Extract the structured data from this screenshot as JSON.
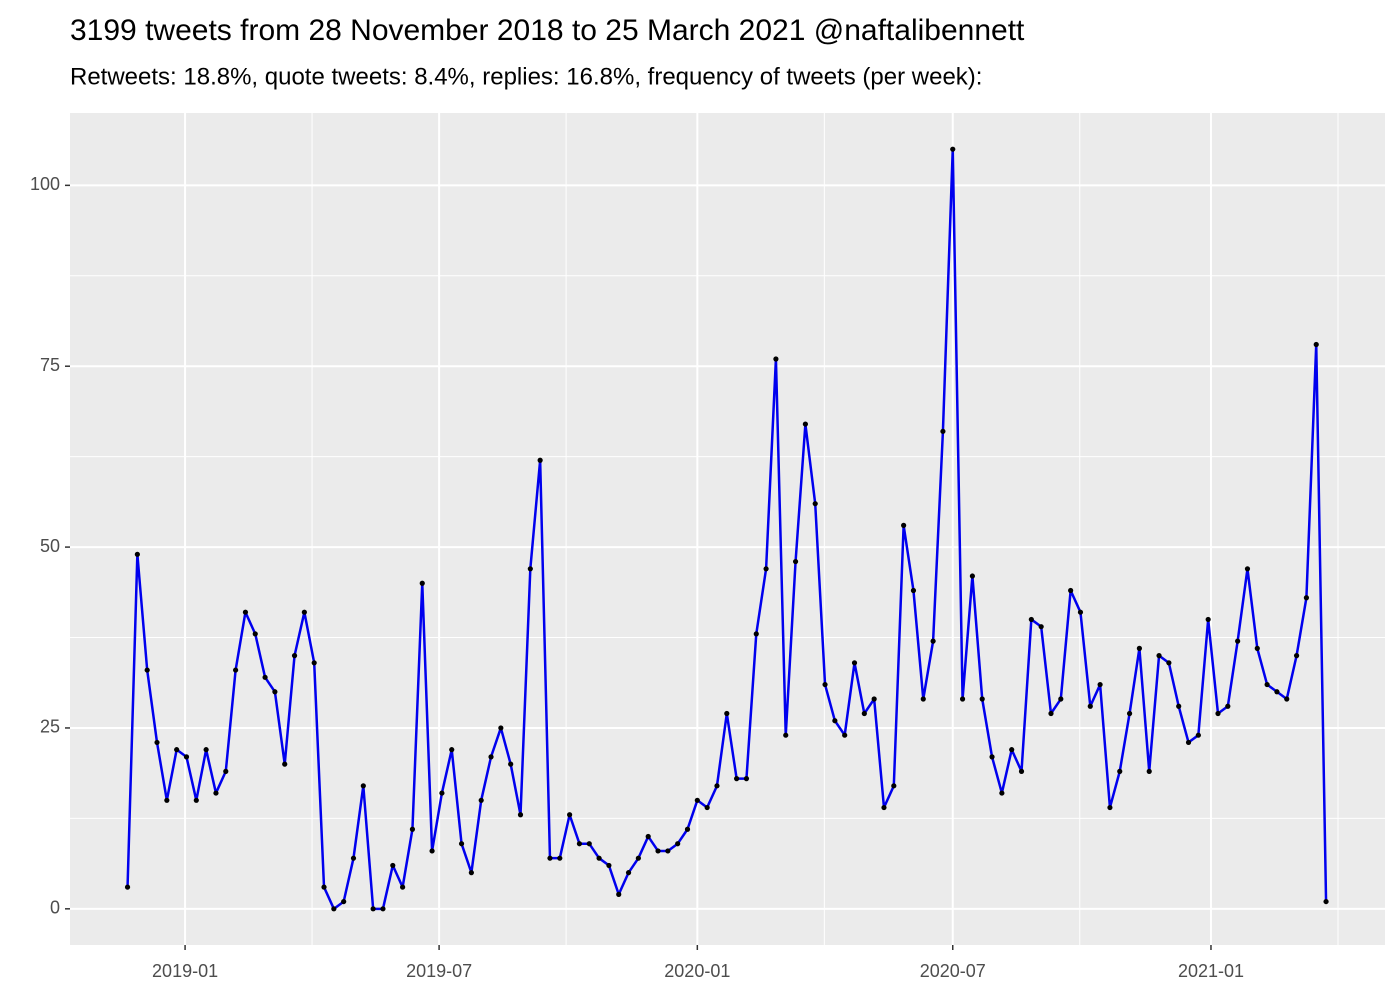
{
  "chart_data": {
    "type": "line",
    "title": "3199 tweets from 28 November 2018 to 25 March 2021 @naftalibennett",
    "subtitle": "Retweets: 18.8%, quote tweets: 8.4%, replies: 16.8%, frequency of tweets (per week):",
    "x": [
      "2018-11-21",
      "2018-11-28",
      "2018-12-05",
      "2018-12-12",
      "2018-12-19",
      "2018-12-26",
      "2019-01-02",
      "2019-01-09",
      "2019-01-16",
      "2019-01-23",
      "2019-01-30",
      "2019-02-06",
      "2019-02-13",
      "2019-02-20",
      "2019-02-27",
      "2019-03-06",
      "2019-03-13",
      "2019-03-20",
      "2019-03-27",
      "2019-04-03",
      "2019-04-10",
      "2019-04-17",
      "2019-04-24",
      "2019-05-01",
      "2019-05-08",
      "2019-05-15",
      "2019-05-22",
      "2019-05-29",
      "2019-06-05",
      "2019-06-12",
      "2019-06-19",
      "2019-06-26",
      "2019-07-03",
      "2019-07-10",
      "2019-07-17",
      "2019-07-24",
      "2019-07-31",
      "2019-08-07",
      "2019-08-14",
      "2019-08-21",
      "2019-08-28",
      "2019-09-04",
      "2019-09-11",
      "2019-09-18",
      "2019-09-25",
      "2019-10-02",
      "2019-10-09",
      "2019-10-16",
      "2019-10-23",
      "2019-10-30",
      "2019-11-06",
      "2019-11-13",
      "2019-11-20",
      "2019-11-27",
      "2019-12-04",
      "2019-12-11",
      "2019-12-18",
      "2019-12-25",
      "2020-01-01",
      "2020-01-08",
      "2020-01-15",
      "2020-01-22",
      "2020-01-29",
      "2020-02-05",
      "2020-02-12",
      "2020-02-19",
      "2020-02-26",
      "2020-03-04",
      "2020-03-11",
      "2020-03-18",
      "2020-03-25",
      "2020-04-01",
      "2020-04-08",
      "2020-04-15",
      "2020-04-22",
      "2020-04-29",
      "2020-05-06",
      "2020-05-13",
      "2020-05-20",
      "2020-05-27",
      "2020-06-03",
      "2020-06-10",
      "2020-06-17",
      "2020-06-24",
      "2020-07-01",
      "2020-07-08",
      "2020-07-15",
      "2020-07-22",
      "2020-07-29",
      "2020-08-05",
      "2020-08-12",
      "2020-08-19",
      "2020-08-26",
      "2020-09-02",
      "2020-09-09",
      "2020-09-16",
      "2020-09-23",
      "2020-09-30",
      "2020-10-07",
      "2020-10-14",
      "2020-10-21",
      "2020-10-28",
      "2020-11-04",
      "2020-11-11",
      "2020-11-18",
      "2020-11-25",
      "2020-12-02",
      "2020-12-09",
      "2020-12-16",
      "2020-12-23",
      "2020-12-30",
      "2021-01-06",
      "2021-01-13",
      "2021-01-20",
      "2021-01-27",
      "2021-02-03",
      "2021-02-10",
      "2021-02-17",
      "2021-02-24",
      "2021-03-03",
      "2021-03-10",
      "2021-03-17",
      "2021-03-24"
    ],
    "values": [
      3,
      49,
      33,
      23,
      15,
      22,
      21,
      15,
      22,
      16,
      19,
      33,
      41,
      38,
      32,
      30,
      20,
      35,
      41,
      34,
      3,
      0,
      1,
      7,
      17,
      0,
      0,
      6,
      3,
      11,
      45,
      8,
      16,
      22,
      9,
      5,
      15,
      21,
      25,
      20,
      13,
      47,
      62,
      7,
      7,
      13,
      9,
      9,
      7,
      6,
      2,
      5,
      7,
      10,
      8,
      8,
      9,
      11,
      15,
      14,
      17,
      27,
      18,
      18,
      38,
      47,
      76,
      24,
      48,
      67,
      56,
      31,
      26,
      24,
      34,
      27,
      29,
      14,
      17,
      53,
      44,
      29,
      37,
      66,
      105,
      29,
      46,
      29,
      21,
      16,
      22,
      19,
      40,
      39,
      27,
      29,
      44,
      41,
      28,
      31,
      14,
      19,
      27,
      36,
      19,
      35,
      34,
      28,
      23,
      24,
      40,
      27,
      28,
      37,
      47,
      36,
      31,
      30,
      29,
      35,
      43,
      78,
      1
    ],
    "color": "#0000ee",
    "marker_color": "#000000",
    "xlim": [
      "2018-10-11",
      "2021-05-05"
    ],
    "xticks": [
      {
        "value": "2019-01-01",
        "label": "2019-01"
      },
      {
        "value": "2019-07-01",
        "label": "2019-07"
      },
      {
        "value": "2020-01-01",
        "label": "2020-01"
      },
      {
        "value": "2020-07-01",
        "label": "2020-07"
      },
      {
        "value": "2021-01-01",
        "label": "2021-01"
      }
    ],
    "ylim": [
      -5,
      110
    ],
    "yticks": [
      0,
      25,
      50,
      75,
      100
    ],
    "grid": true
  }
}
